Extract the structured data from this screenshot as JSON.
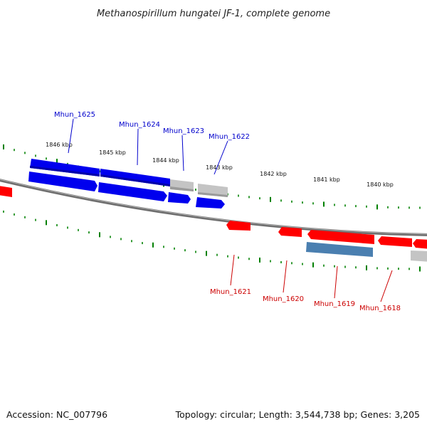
{
  "title": "Methanospirillum hungatei JF-1, complete genome",
  "accession": "Accession: NC_007796",
  "topology": "Topology: circular; Length: 3,544,738 bp; Genes: 3,205",
  "colors": {
    "forward_gene": "#0000ee",
    "forward_gene_dark": "#0000aa",
    "reverse_gene": "#ff0000",
    "reverse_gene_dark": "#cc0000",
    "pseudo_gene": "#b4b4b4",
    "rna_gene": "#4682b4",
    "backbone": "#808080",
    "tick": "#008000",
    "label_forward": "#0000cc",
    "label_reverse": "#cc0000"
  },
  "kbp_ticks": [
    {
      "label": "1846 kbp"
    },
    {
      "label": "1845 kbp"
    },
    {
      "label": "1844 kbp"
    },
    {
      "label": "1843 kbp"
    },
    {
      "label": "1842 kbp"
    },
    {
      "label": "1841 kbp"
    },
    {
      "label": "1840 kbp"
    }
  ],
  "forward_labels": [
    "Mhun_1625",
    "Mhun_1624",
    "Mhun_1623",
    "Mhun_1622"
  ],
  "reverse_labels": [
    "Mhun_1621",
    "Mhun_1620",
    "Mhun_1619",
    "Mhun_1618"
  ]
}
